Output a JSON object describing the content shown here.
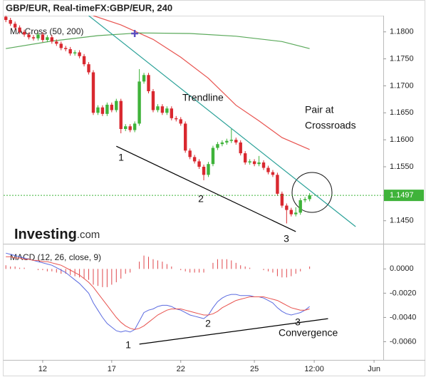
{
  "chart_data": [
    {
      "type": "candlestick",
      "title": "GBP/EUR, Real-timeFX:GBP/EUR, 240",
      "indicator_label": "MA Cross (50, 200)",
      "up_color": "#3fb33a",
      "down_color": "#d9282f",
      "xlim": [
        -0.5,
        82
      ],
      "ylim": [
        1.141,
        1.183
      ],
      "yticks": [
        {
          "value": 1.18,
          "label": "1.1800"
        },
        {
          "value": 1.175,
          "label": "1.1750"
        },
        {
          "value": 1.17,
          "label": "1.1700"
        },
        {
          "value": 1.165,
          "label": "1.1650"
        },
        {
          "value": 1.16,
          "label": "1.1600"
        },
        {
          "value": 1.155,
          "label": "1.1550"
        },
        {
          "value": 1.145,
          "label": "1.1450"
        }
      ],
      "open": [
        1.1828,
        1.1822,
        1.1815,
        1.1808,
        1.18,
        1.1795,
        1.179,
        1.1788,
        1.1795,
        1.1785,
        1.179,
        1.1782,
        1.1778,
        1.177,
        1.1768,
        1.176,
        1.1762,
        1.1755,
        1.174,
        1.1725,
        1.165,
        1.166,
        1.1648,
        1.1665,
        1.1655,
        1.1672,
        1.162,
        1.1625,
        1.1618,
        1.163,
        1.1708,
        1.172,
        1.169,
        1.1655,
        1.1662,
        1.165,
        1.1658,
        1.164,
        1.1638,
        1.163,
        1.158,
        1.1568,
        1.156,
        1.155,
        1.1535,
        1.1555,
        1.1585,
        1.1592,
        1.1595,
        1.1598,
        1.16,
        1.1595,
        1.1575,
        1.1558,
        1.156,
        1.1555,
        1.1558,
        1.1548,
        1.154,
        1.1535,
        1.15,
        1.1478,
        1.147,
        1.1462,
        1.1465,
        1.1488,
        1.149
      ],
      "high": [
        1.1832,
        1.1826,
        1.1819,
        1.1812,
        1.1804,
        1.1799,
        1.1794,
        1.1799,
        1.1799,
        1.1794,
        1.1794,
        1.1786,
        1.1782,
        1.1774,
        1.1772,
        1.1766,
        1.1766,
        1.1759,
        1.1744,
        1.1729,
        1.1664,
        1.1664,
        1.1669,
        1.1669,
        1.1676,
        1.1676,
        1.1629,
        1.1629,
        1.1634,
        1.1731,
        1.1724,
        1.1724,
        1.1694,
        1.1666,
        1.1666,
        1.1662,
        1.1662,
        1.1644,
        1.1642,
        1.1634,
        1.1584,
        1.1572,
        1.1564,
        1.1554,
        1.1559,
        1.1589,
        1.1596,
        1.1599,
        1.1602,
        1.162,
        1.1604,
        1.1599,
        1.1579,
        1.1564,
        1.1564,
        1.157,
        1.1562,
        1.1552,
        1.1544,
        1.1539,
        1.1504,
        1.1482,
        1.1474,
        1.1475,
        1.1492,
        1.1494,
        1.1501
      ],
      "low": [
        1.1818,
        1.1811,
        1.1804,
        1.1796,
        1.1791,
        1.1786,
        1.1784,
        1.1784,
        1.1781,
        1.1781,
        1.1778,
        1.1774,
        1.1766,
        1.1764,
        1.1756,
        1.1756,
        1.1751,
        1.1736,
        1.1721,
        1.1646,
        1.1646,
        1.1644,
        1.1644,
        1.1651,
        1.1651,
        1.1612,
        1.1616,
        1.1614,
        1.1614,
        1.1626,
        1.1704,
        1.1686,
        1.1651,
        1.1651,
        1.1646,
        1.1646,
        1.1636,
        1.1634,
        1.1626,
        1.1576,
        1.1564,
        1.1556,
        1.1546,
        1.1525,
        1.1531,
        1.1551,
        1.1581,
        1.1588,
        1.1591,
        1.1594,
        1.1591,
        1.1571,
        1.1554,
        1.1554,
        1.1551,
        1.1551,
        1.1544,
        1.1536,
        1.1531,
        1.1496,
        1.1474,
        1.1445,
        1.1458,
        1.1458,
        1.1461,
        1.1484,
        1.1486
      ],
      "close": [
        1.1822,
        1.1815,
        1.1808,
        1.18,
        1.1795,
        1.179,
        1.1788,
        1.1795,
        1.1785,
        1.179,
        1.1782,
        1.1778,
        1.177,
        1.1768,
        1.176,
        1.1762,
        1.1755,
        1.174,
        1.1725,
        1.165,
        1.166,
        1.1648,
        1.1665,
        1.1655,
        1.1672,
        1.162,
        1.1625,
        1.1618,
        1.163,
        1.1708,
        1.172,
        1.169,
        1.1655,
        1.1662,
        1.165,
        1.1658,
        1.164,
        1.1638,
        1.163,
        1.158,
        1.1568,
        1.156,
        1.155,
        1.1535,
        1.1555,
        1.1585,
        1.1592,
        1.1595,
        1.1598,
        1.16,
        1.1595,
        1.1575,
        1.1558,
        1.156,
        1.1555,
        1.1558,
        1.1548,
        1.154,
        1.1535,
        1.15,
        1.1478,
        1.147,
        1.1462,
        1.1465,
        1.1488,
        1.149,
        1.1497
      ],
      "lines": [
        {
          "color": "#e8534f",
          "x": [
            19,
            25,
            32,
            38,
            44,
            50,
            55,
            60,
            66
          ],
          "values": [
            1.183,
            1.1813,
            1.1786,
            1.1753,
            1.1714,
            1.1664,
            1.1635,
            1.1604,
            1.1582
          ]
        },
        {
          "color": "#5aa95a",
          "x": [
            0,
            10,
            20,
            29,
            40,
            50,
            60,
            66
          ],
          "values": [
            1.1769,
            1.1783,
            1.1793,
            1.1798,
            1.1797,
            1.1792,
            1.1782,
            1.1769
          ]
        },
        {
          "color": "#2aa198",
          "x": [
            18,
            76
          ],
          "values": [
            1.183,
            1.1439
          ]
        },
        {
          "color": "#000000",
          "x": [
            24,
            63
          ],
          "values": [
            1.1588,
            1.143
          ]
        }
      ],
      "cross_marker": {
        "x": 28,
        "value": 1.1797,
        "color": "#5b4fc0"
      },
      "last_price": 1.1497,
      "last_price_color": "#3fb33a",
      "annotations": [
        "Trendline",
        "Pair at",
        "Crossroads",
        "1",
        "2",
        "3"
      ],
      "logo": [
        "Investing",
        ".com"
      ]
    },
    {
      "type": "macd",
      "title": "MACD (12, 26, close, 9)",
      "xlim": [
        -0.5,
        82
      ],
      "xticks": [
        {
          "value": 8,
          "label": "12"
        },
        {
          "value": 23,
          "label": "17"
        },
        {
          "value": 38,
          "label": "22"
        },
        {
          "value": 54,
          "label": "25"
        },
        {
          "value": 67,
          "label": "12:00"
        },
        {
          "value": 80,
          "label": "Jun"
        }
      ],
      "ylim": [
        -0.0075,
        0.0019
      ],
      "yticks": [
        {
          "value": 0,
          "label": "0.0000"
        },
        {
          "value": -0.002,
          "label": "-0.0020"
        },
        {
          "value": -0.004,
          "label": "-0.0040"
        },
        {
          "value": -0.006,
          "label": "-0.0060"
        }
      ],
      "histogram_color": "#e0474c",
      "histogram": [
        0.0003,
        0.0002,
        0.0002,
        0.0001,
        0.0001,
        0.0,
        0.0,
        -0.0001,
        -0.0001,
        -0.0002,
        -0.0002,
        -0.0003,
        -0.0004,
        -0.0004,
        -0.0005,
        -0.0006,
        -0.0007,
        -0.0008,
        -0.0009,
        -0.0013,
        -0.0014,
        -0.0015,
        -0.0015,
        -0.0013,
        -0.0011,
        -0.0008,
        -0.0004,
        -0.0003,
        0.0,
        0.0006,
        0.0011,
        0.001,
        0.0008,
        0.0007,
        0.0006,
        0.0004,
        0.0002,
        0.0,
        -0.0001,
        -0.0002,
        -0.0003,
        -0.0003,
        -0.0003,
        -0.0003,
        0.0,
        0.0005,
        0.0008,
        0.0008,
        0.0008,
        0.0007,
        0.0005,
        0.0003,
        0.0002,
        0.0001,
        0.0,
        0.0,
        -0.0001,
        -0.0002,
        -0.0003,
        -0.0006,
        -0.0007,
        -0.0007,
        -0.0006,
        -0.0004,
        -0.0002,
        0.0,
        0.0002
      ],
      "series": [
        {
          "color": "#5b6be0",
          "values": [
            0.0013,
            0.0012,
            0.0011,
            0.001,
            0.0009,
            0.0008,
            0.0007,
            0.0006,
            0.0005,
            0.0004,
            0.0003,
            0.0001,
            -0.0001,
            -0.0003,
            -0.0006,
            -0.0009,
            -0.0012,
            -0.0016,
            -0.002,
            -0.0028,
            -0.0034,
            -0.004,
            -0.0045,
            -0.0048,
            -0.0051,
            -0.0052,
            -0.0051,
            -0.0052,
            -0.005,
            -0.0043,
            -0.0036,
            -0.0034,
            -0.0033,
            -0.0031,
            -0.003,
            -0.003,
            -0.0031,
            -0.0033,
            -0.0034,
            -0.0036,
            -0.0038,
            -0.0039,
            -0.004,
            -0.0041,
            -0.0038,
            -0.0032,
            -0.0027,
            -0.0024,
            -0.0022,
            -0.0021,
            -0.0021,
            -0.0022,
            -0.0022,
            -0.0022,
            -0.0023,
            -0.0023,
            -0.0024,
            -0.0026,
            -0.0028,
            -0.0032,
            -0.0035,
            -0.0037,
            -0.0038,
            -0.0037,
            -0.0036,
            -0.0034,
            -0.0031
          ]
        },
        {
          "color": "#e8534f",
          "values": [
            0.001,
            0.001,
            0.0009,
            0.0009,
            0.0008,
            0.0008,
            0.0007,
            0.0007,
            0.0006,
            0.0006,
            0.0005,
            0.0004,
            0.0003,
            0.0001,
            -0.0001,
            -0.0003,
            -0.0005,
            -0.0008,
            -0.0011,
            -0.0015,
            -0.002,
            -0.0025,
            -0.003,
            -0.0035,
            -0.004,
            -0.0044,
            -0.0047,
            -0.0049,
            -0.005,
            -0.0049,
            -0.0047,
            -0.0044,
            -0.0041,
            -0.0038,
            -0.0036,
            -0.0034,
            -0.0033,
            -0.0033,
            -0.0033,
            -0.0034,
            -0.0035,
            -0.0036,
            -0.0037,
            -0.0038,
            -0.0038,
            -0.0037,
            -0.0035,
            -0.0032,
            -0.003,
            -0.0028,
            -0.0026,
            -0.0025,
            -0.0024,
            -0.0023,
            -0.0023,
            -0.0023,
            -0.0023,
            -0.0024,
            -0.0025,
            -0.0026,
            -0.0028,
            -0.003,
            -0.0032,
            -0.0033,
            -0.0034,
            -0.0034,
            -0.0033
          ]
        }
      ],
      "lines": [
        {
          "color": "#000000",
          "x": [
            29,
            70
          ],
          "values": [
            -0.0062,
            -0.0041
          ]
        }
      ],
      "annotations": [
        "1",
        "2",
        "3",
        "Convergence"
      ]
    }
  ]
}
